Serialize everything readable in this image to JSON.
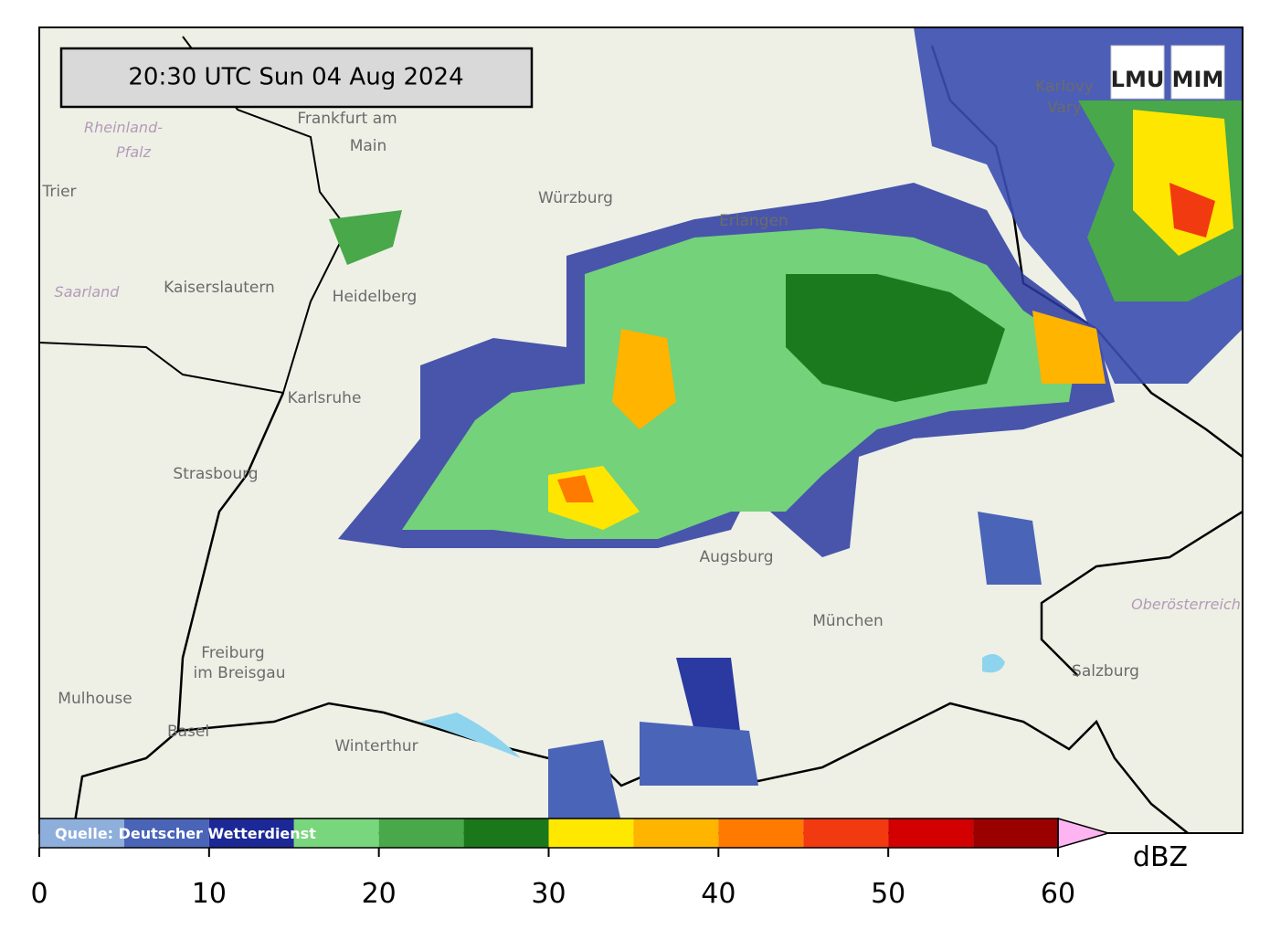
{
  "map": {
    "timestamp": "20:30 UTC  Sun 04 Aug 2024",
    "logo": [
      "LMU",
      "MIM"
    ],
    "source": "Quelle: Deutscher Wetterdienst",
    "places": [
      "Frankfurt am",
      "Main",
      "Karlovy",
      "Vary",
      "Rheinland-",
      "Pfalz",
      "Trier",
      "Würzburg",
      "Erlangen",
      "Kaiserslautern",
      "Heidelberg",
      "Saarland",
      "Karlsruhe",
      "Strasbourg",
      "Augsburg",
      "München",
      "Oberösterreich",
      "Freiburg",
      "im Breisgau",
      "Mulhouse",
      "Basel",
      "Winterthur",
      "Salzburg"
    ],
    "colorbar": {
      "unit": "dBZ",
      "bounds": [
        0,
        5,
        10,
        15,
        20,
        25,
        30,
        35,
        40,
        45,
        50,
        55,
        60
      ],
      "colors": [
        "#8eaedc",
        "#4a64b8",
        "#1c2896",
        "#78d67c",
        "#48a84a",
        "#1a781a",
        "#ffe800",
        "#ffb400",
        "#ff7a00",
        "#f23a10",
        "#d20000",
        "#9a0000"
      ],
      "over_color": "#ffb4f2",
      "ticks": [
        0,
        10,
        20,
        30,
        40,
        50,
        60
      ]
    }
  }
}
